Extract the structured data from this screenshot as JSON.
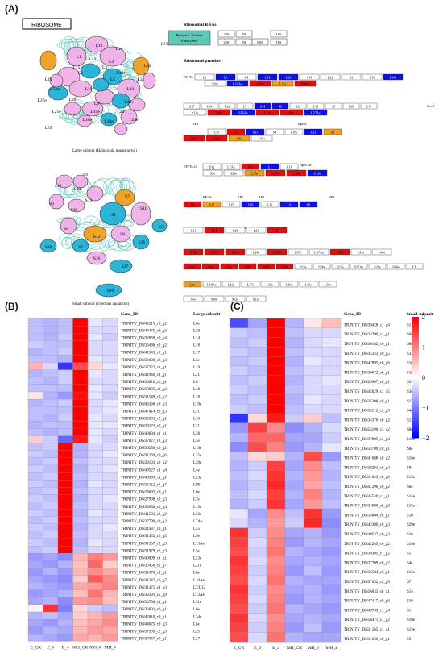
{
  "panels": {
    "a": "(A)",
    "b": "(B)",
    "c": "(C)"
  },
  "ribosome_box": "RIBOSOME",
  "large_subunit": {
    "caption": "Large subunit (Haloarcula marismortui)",
    "stalk_label": "L7/L12 stalk",
    "labels": [
      "L18",
      "L1",
      "L15",
      "L13",
      "L3",
      "L29",
      "L5",
      "L6",
      "L14",
      "L19",
      "L24",
      "L2",
      "L10e",
      "L23",
      "L4",
      "L7Ae",
      "L37e",
      "L21e",
      "L22",
      "L30",
      "L31",
      "L32e",
      "L24e",
      "L25",
      "L15e",
      "L39e",
      "L18e"
    ]
  },
  "small_subunit": {
    "caption": "Small subunit (Thermus aquaticus)",
    "labels": [
      "S10",
      "S9",
      "S14",
      "S3",
      "S13",
      "S19",
      "S7",
      "S2",
      "S11",
      "S4",
      "S12",
      "S8",
      "S5",
      "S6",
      "S15",
      "S16",
      "S17",
      "S18",
      "S20"
    ]
  },
  "legend_rna": {
    "title": "Ribosomal RNAs",
    "rows": [
      "Bacteria / Archaea",
      "Eukaryotes"
    ],
    "bacteria": [
      "23S",
      "5S",
      "16S"
    ],
    "euk": [
      "25S",
      "5S",
      "5.8S",
      "18S"
    ]
  },
  "legend_prot": {
    "title": "Ribosomal proteins",
    "side_labels": [
      "EF-Tu",
      "SecY",
      "IF1",
      "RpoA",
      "EF-Tu,G",
      "RpoC,B",
      "EF-Ts",
      "IF2",
      "IF3",
      "RF1",
      "FtsY,Ffh"
    ],
    "row1_top": [
      "L1",
      "L3",
      "L4",
      "L23",
      "L29",
      "S19",
      "L22",
      "S3",
      "L16",
      "L14e"
    ],
    "row1_bot": [
      "S20e",
      "L23Ae",
      "L15e",
      "L17e",
      "S3Ae"
    ],
    "row2_top": [
      "S17",
      "L14",
      "L24",
      "L5",
      "S14",
      "S8",
      "L6",
      "L18",
      "S5",
      "L30",
      "L15"
    ],
    "row2_bot": [
      "S11e",
      "L26e",
      "S15Ae",
      "L32e",
      "S2e",
      "L27Ae"
    ],
    "row3_top": [
      "L36",
      "S13",
      "S11",
      "S4",
      "L18e",
      "L13",
      "S9"
    ],
    "row3_bot": [
      "L18e",
      "S18e",
      "S9e",
      "S16e"
    ],
    "row4_top": [
      "S12",
      "L7Ae",
      "L12",
      "L1",
      "L11"
    ],
    "row4_bot": [
      "S5e",
      "S23e",
      "L30e",
      "LP0",
      "L10e",
      "L12e"
    ],
    "row5": [
      "S2",
      "S15",
      "L35",
      "L20",
      "L32",
      "L9",
      "S6"
    ],
    "row6": [
      "L33",
      "L34",
      "S20",
      "S21",
      "L31"
    ],
    "row7": [
      "L13e",
      "L19e",
      "L24e",
      "L34e",
      "L35Ae",
      "L37e",
      "L37Ae",
      "L40e",
      "L41e",
      "L44e"
    ],
    "row8": [
      "S4e",
      "S6e",
      "S7e",
      "S8e",
      "S19e",
      "S24e",
      "S25e",
      "S26e",
      "S27e",
      "S27Ae",
      "S28e",
      "S30e",
      "LX"
    ],
    "row9": [
      "L6e",
      "L18Ae",
      "L22e",
      "L27e",
      "L28e",
      "L29e",
      "L36e",
      "L38e"
    ],
    "row10": [
      "S7e",
      "S10e",
      "S12e",
      "S21e"
    ]
  },
  "heatmap_b": {
    "col_gene": "Gene_ID",
    "col_sub": "Large subunit",
    "conditions": [
      "E_CK",
      "E_6",
      "E_4",
      "MH_CK",
      "MH_6",
      "MH_4"
    ],
    "rows": [
      [
        "TRINITY_DN42215_c0_g2",
        "L6e"
      ],
      [
        "TRINITY_DN44475_c0_g3",
        "L29"
      ],
      [
        "TRINITY_DN32839_c0_g4",
        "L14"
      ],
      [
        "TRINITY_DN36486_c0_g2",
        "L18"
      ],
      [
        "TRINITY_DN41343_c0_g1",
        "L17"
      ],
      [
        "TRINITY_DN36038_c0_g3",
        "L3e"
      ],
      [
        "TRINITY_DN37722_c1_g1",
        "L19"
      ],
      [
        "TRINITY_DN41946_c1_g1",
        "L21"
      ],
      [
        "TRINITY_DN36022_c0_g1",
        "L6"
      ],
      [
        "TRINITY_DN10905_c0_g3",
        "L18"
      ],
      [
        "TRINITY_DN31549_c0_g2",
        "L18"
      ],
      [
        "TRINITY_DN46366_c0_g3",
        "L10e"
      ],
      [
        "TRINITY_DN47014_c0_g3",
        "L31"
      ],
      [
        "TRINITY_DN32003_c2_g1",
        "L10"
      ],
      [
        "TRINITY_DN38223_c0_g1",
        "L21"
      ],
      [
        "TRINITY_DN48094_c1_g1",
        "L28"
      ],
      [
        "TRINITY_DN37027_c2_g3",
        "L3e"
      ],
      [
        "TRINITY_DN36256_c0_g2",
        "L19e"
      ],
      [
        "TRINITY_DN31369_c0_g6",
        "L15e"
      ],
      [
        "TRINITY_DN28103_c0_g2",
        "L39e"
      ],
      [
        "TRINITY_DN49527_c1_g4",
        "L4e"
      ],
      [
        "TRINITY_DN40999_c1_g1",
        "L23e"
      ],
      [
        "TRINITY_DN35112_c0_g7",
        "LP0"
      ],
      [
        "TRINITY_DN24693_c0_g1",
        "L6e"
      ],
      [
        "TRINITY_DN27908_c0_g3",
        "L7e"
      ],
      [
        "TRINITY_DN33058_c0_g4",
        "L10e"
      ],
      [
        "TRINITY_DN41583_c2_g2",
        "L30e"
      ],
      [
        "TRINITY_DN27799_c0_g2",
        "L7Ae"
      ],
      [
        "TRINITY_DN21487_c0_g1",
        "L35"
      ],
      [
        "TRINITY_DN31452_c0_g2",
        "L9e"
      ],
      [
        "TRINITY_DN31367_c0_g3",
        "L13Ae"
      ],
      [
        "TRINITY_DN31979_c2_g3",
        "L5e"
      ],
      [
        "TRINITY_DN40099_c1_g1",
        "L23e"
      ],
      [
        "TRINITY_DN35458_c1_g7",
        "L21e"
      ],
      [
        "TRINITY_DN31470_c1_g1",
        "L8e"
      ],
      [
        "TRINITY_DN41347_c0_g7",
        "L10Ae"
      ],
      [
        "TRINITY_DN31475_c1_g3",
        "L7/L12"
      ],
      [
        "TRINITY_DN33391_c5_g9",
        "L13Ae"
      ],
      [
        "TRINITY_DN36756_c1_g1",
        "L31e"
      ],
      [
        "TRINITY_DN36801_c0_g1",
        "L6e"
      ],
      [
        "TRINITY_DN42010_c0_g1",
        "L34e"
      ],
      [
        "TRINITY_DN44675_c0_g3",
        "L8e"
      ],
      [
        "TRINITY_DN37309_c2_g3",
        "L25"
      ],
      [
        "TRINITY_DN37347_c0_g1",
        "L27"
      ]
    ],
    "values": [
      [
        -0.5,
        -0.6,
        -0.5,
        2.0,
        -0.2,
        -0.3
      ],
      [
        -0.5,
        -0.6,
        -0.5,
        2.0,
        -0.3,
        -0.3
      ],
      [
        -0.5,
        -0.6,
        -0.4,
        2.0,
        -0.2,
        -0.4
      ],
      [
        -0.4,
        -0.5,
        -0.5,
        2.0,
        -0.3,
        -0.3
      ],
      [
        -0.6,
        -0.5,
        -0.4,
        2.0,
        -0.3,
        -0.3
      ],
      [
        -0.5,
        -0.5,
        -0.6,
        2.0,
        -0.2,
        -0.3
      ],
      [
        0.6,
        -0.3,
        -1.6,
        1.4,
        0.3,
        -0.2
      ],
      [
        -0.6,
        -0.5,
        -0.4,
        2.0,
        -0.2,
        -0.3
      ],
      [
        -0.5,
        -0.6,
        -0.4,
        2.0,
        -0.3,
        -0.3
      ],
      [
        -0.5,
        -0.5,
        -0.5,
        2.0,
        -0.2,
        -0.3
      ],
      [
        0.2,
        -0.6,
        -0.8,
        1.9,
        -0.2,
        -0.4
      ],
      [
        -0.6,
        -0.5,
        -0.4,
        2.0,
        -0.3,
        -0.2
      ],
      [
        -0.5,
        -0.5,
        -0.5,
        2.0,
        -0.3,
        -0.2
      ],
      [
        -0.5,
        -0.6,
        -0.4,
        2.0,
        -0.2,
        -0.3
      ],
      [
        -0.6,
        -0.5,
        -0.5,
        2.0,
        -0.2,
        -0.2
      ],
      [
        -0.5,
        -0.6,
        -0.5,
        2.0,
        -0.2,
        -0.3
      ],
      [
        0.4,
        -0.4,
        -1.2,
        1.8,
        -0.2,
        -0.4
      ],
      [
        -0.5,
        -0.4,
        2.0,
        -0.6,
        -0.3,
        -0.3
      ],
      [
        -0.4,
        -0.5,
        2.0,
        -0.6,
        -0.3,
        -0.2
      ],
      [
        -0.5,
        -0.4,
        2.0,
        -0.5,
        -0.3,
        -0.3
      ],
      [
        -0.4,
        -0.5,
        2.0,
        -0.6,
        -0.3,
        -0.2
      ],
      [
        -0.5,
        -0.4,
        2.0,
        -0.5,
        -0.3,
        -0.3
      ],
      [
        -0.4,
        -0.5,
        2.0,
        -0.6,
        -0.2,
        -0.3
      ],
      [
        -0.5,
        -0.4,
        2.0,
        -0.5,
        -0.3,
        -0.3
      ],
      [
        -0.4,
        -0.5,
        2.0,
        -0.6,
        -0.3,
        -0.2
      ],
      [
        -0.5,
        -0.4,
        2.0,
        -0.5,
        -0.3,
        -0.3
      ],
      [
        -0.4,
        -0.5,
        2.0,
        -0.6,
        -0.2,
        -0.3
      ],
      [
        -0.5,
        -0.4,
        2.0,
        -0.5,
        -0.3,
        -0.3
      ],
      [
        -0.4,
        -0.5,
        2.0,
        -0.6,
        -0.3,
        -0.2
      ],
      [
        -0.5,
        -0.4,
        2.0,
        -0.5,
        -0.3,
        -0.3
      ],
      [
        -0.4,
        -0.5,
        2.0,
        -0.6,
        -0.2,
        -0.3
      ],
      [
        -0.5,
        -0.4,
        2.0,
        -0.5,
        -0.3,
        -0.3
      ],
      [
        -0.8,
        -0.7,
        -0.9,
        0.6,
        1.0,
        0.8
      ],
      [
        -0.7,
        -0.8,
        -0.6,
        0.5,
        1.2,
        0.4
      ],
      [
        -0.8,
        -0.6,
        -0.8,
        0.6,
        0.9,
        0.7
      ],
      [
        -0.7,
        -0.8,
        -0.9,
        0.4,
        1.3,
        0.9
      ],
      [
        -0.6,
        -0.7,
        -0.8,
        0.7,
        0.8,
        1.0
      ],
      [
        -0.8,
        -0.7,
        -0.6,
        0.5,
        1.1,
        0.6
      ],
      [
        -0.7,
        -0.6,
        -0.9,
        0.8,
        0.9,
        0.5
      ],
      [
        0.1,
        1.6,
        -1.0,
        0.3,
        -0.4,
        -0.5
      ],
      [
        -0.6,
        -0.5,
        -0.7,
        0.4,
        0.6,
        0.8
      ],
      [
        -0.7,
        -0.8,
        -0.6,
        0.5,
        0.7,
        0.9
      ],
      [
        -0.8,
        -0.6,
        -0.7,
        0.6,
        0.8,
        0.7
      ],
      [
        -0.6,
        -0.7,
        -0.8,
        0.7,
        0.6,
        0.8
      ]
    ]
  },
  "heatmap_c": {
    "col_gene": "Gene_ID",
    "col_sub": "Small subunit",
    "conditions": [
      "E_CK",
      "E_6",
      "E_4",
      "MH_CK",
      "MH_6",
      "MH_4"
    ],
    "rows": [
      [
        "TRINITY_DN39428_c1_g4",
        "S11"
      ],
      [
        "TRINITY_DN34290_c1_g1",
        "S6e"
      ],
      [
        "TRINITY_DN30182_c0_g1",
        "S8e"
      ],
      [
        "TRINITY_DN35333_c0_g5",
        "S3Ae"
      ],
      [
        "TRINITY_DN47895_c0_g6",
        "S16e"
      ],
      [
        "TRINITY_DN30672_c0_g1",
        "S19e"
      ],
      [
        "TRINITY_DN29907_c0_g1",
        "S24e"
      ],
      [
        "TRINITY_DN45629_c1_g5",
        "S3e"
      ],
      [
        "TRINITY_DN25308_c0_g1",
        "S17e"
      ],
      [
        "TRINITY_DN35112_c0_g3",
        "S4e"
      ],
      [
        "TRINITY_DN34370_c0_g2",
        "S13"
      ],
      [
        "TRINITY_DN54190_c3_g2",
        "S8e"
      ],
      [
        "TRINITY_DN37895_c3_g2",
        "S16e"
      ],
      [
        "TRINITY_DN34709_c0_g1",
        "S8e"
      ],
      [
        "TRINITY_DN41688_c0_g2",
        "S16e"
      ],
      [
        "TRINITY_DN38291_c0_g4",
        "S8e"
      ],
      [
        "TRINITY_DN31023_c0_g6",
        "S13e"
      ],
      [
        "TRINITY_DN41296_c0_g2",
        "S6e"
      ],
      [
        "TRINITY_DN44540_c1_g1",
        "S14e"
      ],
      [
        "TRINITY_DN34090_c0_g3",
        "S15e"
      ],
      [
        "TRINITY_DN34864_c0_g1",
        "S18"
      ],
      [
        "TRINITY_DN42380_c0_g3",
        "S29e"
      ],
      [
        "TRINITY_DN48537_c0_g3",
        "S16"
      ],
      [
        "TRINITY_DN42285_c0_g2",
        "S14e"
      ],
      [
        "TRINITY_DN39305_c1_g2",
        "S1"
      ],
      [
        "TRINITY_DN37709_c0_g2",
        "S4e"
      ],
      [
        "TRINITY_DN35584_c0_g1",
        "S15e"
      ],
      [
        "TRINITY_DN37432_c2_g5",
        "S7"
      ],
      [
        "TRINITY_DN56033_c0_g1",
        "S14"
      ],
      [
        "TRINITY_DN47417_c0_g6",
        "S10"
      ],
      [
        "TRINITY_DN49739_c1_g4",
        "S1"
      ],
      [
        "TRINITY_DN56471_c1_g2",
        "S18e"
      ],
      [
        "TRINITY_DN31565_c1_g1",
        "S13e"
      ],
      [
        "TRINITY_DN31636_c0_g1",
        "S6"
      ]
    ],
    "values": [
      [
        -1.4,
        -0.7,
        2.0,
        -0.6,
        0.2,
        0.5
      ],
      [
        -0.4,
        -0.5,
        2.0,
        -0.5,
        -0.3,
        -0.3
      ],
      [
        -0.5,
        -0.4,
        2.0,
        -0.6,
        -0.3,
        -0.2
      ],
      [
        -0.4,
        -0.5,
        2.0,
        -0.5,
        -0.3,
        -0.3
      ],
      [
        -0.5,
        -0.4,
        2.0,
        -0.6,
        -0.2,
        -0.3
      ],
      [
        -0.4,
        -0.5,
        2.0,
        -0.5,
        -0.3,
        -0.3
      ],
      [
        -0.5,
        -0.4,
        2.0,
        -0.6,
        -0.3,
        -0.2
      ],
      [
        -0.4,
        -0.5,
        2.0,
        -0.5,
        -0.3,
        -0.3
      ],
      [
        -0.5,
        -0.4,
        2.0,
        -0.6,
        -0.2,
        -0.3
      ],
      [
        -0.4,
        -0.5,
        2.0,
        -0.5,
        -0.3,
        -0.3
      ],
      [
        -1.6,
        0.3,
        1.8,
        -0.4,
        0.4,
        -0.5
      ],
      [
        -0.8,
        1.5,
        0.9,
        -0.9,
        -0.6,
        -0.3
      ],
      [
        -0.6,
        1.2,
        1.2,
        -0.7,
        -0.7,
        -0.4
      ],
      [
        -0.9,
        1.4,
        1.0,
        -0.8,
        -0.6,
        -0.2
      ],
      [
        -0.5,
        0.3,
        0.4,
        -0.6,
        1.4,
        -0.8
      ],
      [
        -0.6,
        -0.4,
        1.5,
        -0.7,
        0.9,
        -0.5
      ],
      [
        -0.5,
        -0.3,
        1.6,
        -0.6,
        0.8,
        -0.6
      ],
      [
        -0.6,
        -0.4,
        1.7,
        -0.7,
        0.7,
        -0.5
      ],
      [
        -0.5,
        -0.3,
        1.5,
        -0.6,
        1.0,
        -0.6
      ],
      [
        -0.6,
        -0.4,
        1.6,
        -0.7,
        0.8,
        -0.5
      ],
      [
        -0.2,
        -0.7,
        0.9,
        -0.5,
        1.6,
        -0.8
      ],
      [
        -0.3,
        -0.6,
        0.8,
        -0.4,
        1.7,
        -0.9
      ],
      [
        1.6,
        -0.4,
        0.9,
        -0.7,
        -0.6,
        -0.8
      ],
      [
        1.5,
        -0.3,
        1.0,
        -0.8,
        -0.6,
        -0.7
      ],
      [
        1.4,
        -0.4,
        1.1,
        -0.6,
        -0.7,
        -0.8
      ],
      [
        1.6,
        -0.3,
        0.9,
        -0.7,
        -0.6,
        -0.7
      ],
      [
        1.5,
        -0.4,
        1.0,
        -0.8,
        -0.5,
        -0.8
      ],
      [
        1.4,
        -0.3,
        1.1,
        -0.6,
        -0.7,
        -0.7
      ],
      [
        1.6,
        -0.4,
        0.9,
        -0.7,
        -0.6,
        -0.8
      ],
      [
        1.5,
        -0.3,
        1.0,
        -0.8,
        -0.6,
        -0.7
      ],
      [
        1.4,
        -0.4,
        1.1,
        -0.6,
        -0.7,
        -0.8
      ],
      [
        1.6,
        -0.3,
        0.9,
        -0.7,
        -0.6,
        -0.7
      ],
      [
        1.5,
        -0.4,
        1.0,
        -0.8,
        -0.5,
        -0.8
      ],
      [
        1.4,
        -0.3,
        1.1,
        -0.6,
        -0.7,
        -0.7
      ]
    ]
  },
  "colorbar": {
    "ticks": [
      "2",
      "1",
      "0",
      "−1",
      "−2"
    ]
  },
  "colors": {
    "teal": "#5ec8b8",
    "blue": "#1010e0",
    "red": "#e01010",
    "orange": "#f0a020",
    "pink": "#f0b0e8",
    "cyan": "#22b0d8"
  }
}
